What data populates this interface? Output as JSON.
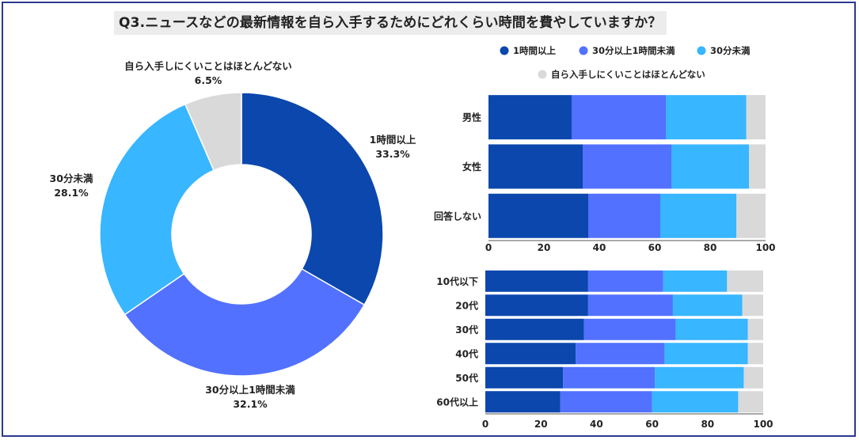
{
  "title": "Q3.ニュースなどの最新情報を自ら入手するためにどれくらい時間を費やしていますか？",
  "colors": [
    "#0b47ad",
    "#5271ff",
    "#38b6ff",
    "#d9d9d9"
  ],
  "chart_data": [
    {
      "type": "pie",
      "donut": true,
      "title": "",
      "categories": [
        "1時間以上",
        "30分以上1時間未満",
        "30分未満",
        "自ら入手しにくいことはほとんどない"
      ],
      "values": [
        33.3,
        32.1,
        28.1,
        6.5
      ],
      "value_labels": [
        "33.3%",
        "32.1%",
        "28.1%",
        "6.5%"
      ]
    },
    {
      "type": "bar",
      "orientation": "horizontal",
      "stacked": true,
      "title": "",
      "categories": [
        "男性",
        "女性",
        "回答しない"
      ],
      "xlim": [
        0,
        100
      ],
      "xticks": [
        0,
        20,
        40,
        60,
        80,
        100
      ],
      "legend": "top",
      "series": [
        {
          "name": "1時間以上",
          "values": [
            30,
            34,
            36
          ]
        },
        {
          "name": "30分以上1時間未満",
          "values": [
            34,
            32,
            26
          ]
        },
        {
          "name": "30分未満",
          "values": [
            29,
            28,
            27.5
          ]
        },
        {
          "name": "自ら入手しにくいことはほとんどない",
          "values": [
            7,
            6,
            10.5
          ]
        }
      ]
    },
    {
      "type": "bar",
      "orientation": "horizontal",
      "stacked": true,
      "title": "",
      "categories": [
        "10代以下",
        "20代",
        "30代",
        "40代",
        "50代",
        "60代以上"
      ],
      "xlim": [
        0,
        100
      ],
      "xticks": [
        0,
        20,
        40,
        60,
        80,
        100
      ],
      "series": [
        {
          "name": "1時間以上",
          "values": [
            37,
            37,
            35.5,
            32.5,
            28,
            27
          ]
        },
        {
          "name": "30分以上1時間未満",
          "values": [
            27,
            30.5,
            33,
            32,
            33,
            33
          ]
        },
        {
          "name": "30分未満",
          "values": [
            23,
            25,
            26,
            30,
            32,
            31
          ]
        },
        {
          "name": "自ら入手しにくいことはほとんどない",
          "values": [
            13,
            7.5,
            5.5,
            5.5,
            7,
            9
          ]
        }
      ]
    }
  ]
}
